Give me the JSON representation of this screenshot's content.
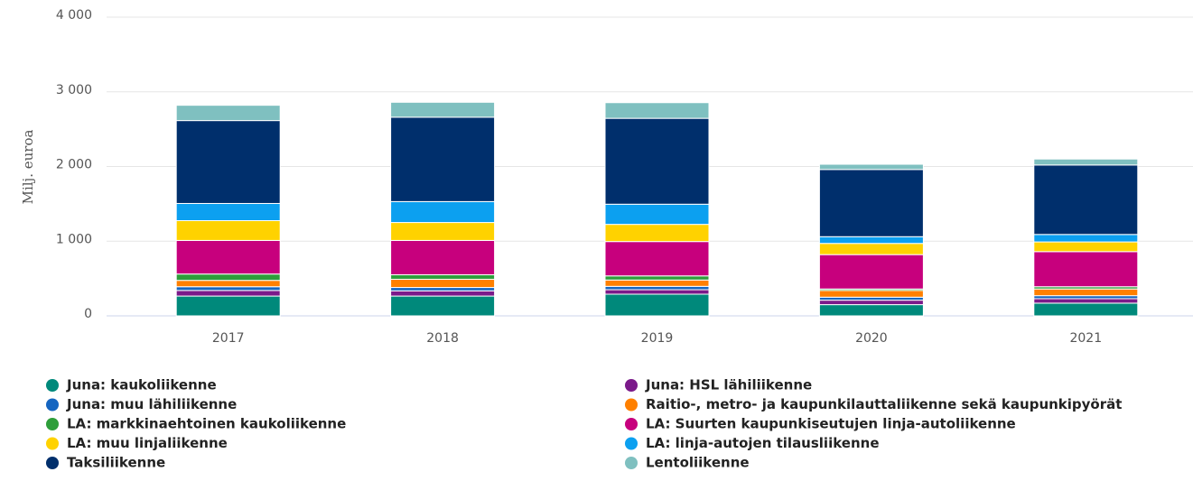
{
  "chart_data": {
    "type": "stacked_bar",
    "y_label": "Milj. euroa",
    "categories": [
      "2017",
      "2018",
      "2019",
      "2020",
      "2021"
    ],
    "series": [
      {
        "name": "Juna: kaukoliikenne",
        "color": "#00897b",
        "values": [
          265,
          265,
          290,
          150,
          170
        ]
      },
      {
        "name": "Juna: HSL lähiliikenne",
        "color": "#7b1a8a",
        "values": [
          75,
          70,
          60,
          60,
          60
        ]
      },
      {
        "name": "Juna: muu lähiliikenne",
        "color": "#1565c0",
        "values": [
          50,
          45,
          45,
          40,
          40
        ]
      },
      {
        "name": "Raitio-, metro- ja kaupunkilauttaliikenne sekä kaupunkipyörät",
        "color": "#ff8000",
        "values": [
          85,
          110,
          85,
          90,
          90
        ]
      },
      {
        "name": "LA: markkinaehtoinen kaukoliikenne",
        "color": "#2e9e3a",
        "values": [
          85,
          60,
          55,
          20,
          30
        ]
      },
      {
        "name": "LA: Suurten kaupunkiseutujen linja-autoliikenne",
        "color": "#c7007d",
        "values": [
          450,
          460,
          460,
          460,
          470
        ]
      },
      {
        "name": "LA: muu linjaliikenne",
        "color": "#ffd200",
        "values": [
          265,
          240,
          230,
          150,
          130
        ]
      },
      {
        "name": "LA: linja-autojen tilausliikenne",
        "color": "#0ca0f0",
        "values": [
          230,
          280,
          270,
          90,
          100
        ]
      },
      {
        "name": "Taksiliikenne",
        "color": "#002f6c",
        "values": [
          1110,
          1130,
          1150,
          900,
          930
        ]
      },
      {
        "name": "Lentoliikenne",
        "color": "#7fc0c0",
        "values": [
          205,
          200,
          210,
          70,
          80
        ]
      }
    ],
    "ylim": [
      0,
      4000
    ],
    "yticks": [
      0,
      {
        "value": 1000,
        "label": "1 000"
      },
      {
        "value": 2000,
        "label": "2 000"
      },
      {
        "value": 3000,
        "label": "3 000"
      },
      {
        "value": 4000,
        "label": "4 000"
      }
    ],
    "grid": true,
    "legend": "bottom"
  }
}
